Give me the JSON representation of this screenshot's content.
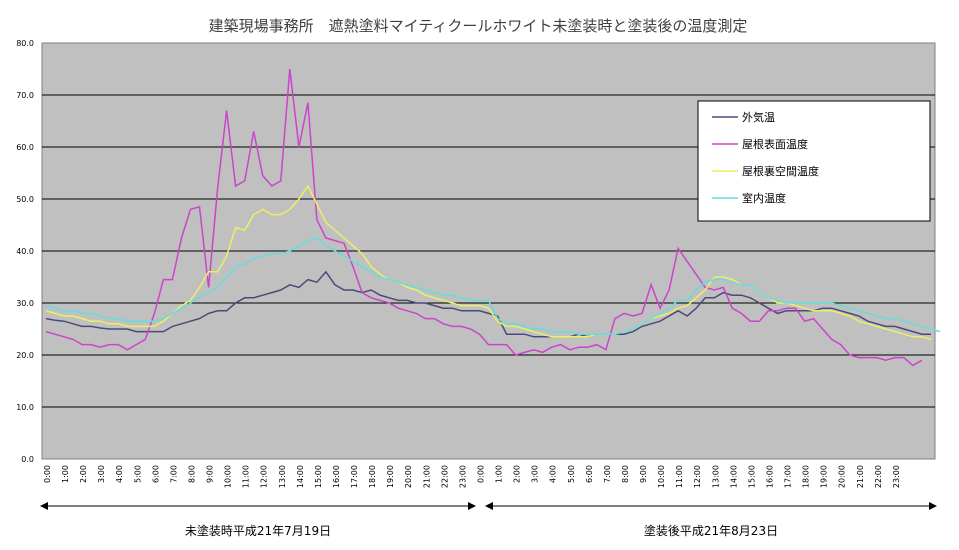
{
  "chart_data": {
    "type": "line",
    "title": "建築現場事務所　遮熱塗料マイティクールホワイト未塗装時と塗装後の温度測定",
    "y_ticks": [
      "0.0",
      "10.0",
      "20.0",
      "30.0",
      "40.0",
      "50.0",
      "60.0",
      "70.0",
      "80.0"
    ],
    "ylim": [
      0,
      80
    ],
    "grid": true,
    "legend_position": "top-right",
    "x_tick_labels": [
      "0:00",
      "1:00",
      "2:00",
      "3:00",
      "4:00",
      "5:00",
      "6:00",
      "7:00",
      "8:00",
      "9:00",
      "10:00",
      "11:00",
      "12:00",
      "13:00",
      "14:00",
      "15:00",
      "16:00",
      "17:00",
      "18:00",
      "19:00",
      "20:00",
      "21:00",
      "22:00",
      "23:00",
      "0:00",
      "1:00",
      "2:00",
      "3:00",
      "4:00",
      "5:00",
      "6:00",
      "7:00",
      "8:00",
      "9:00",
      "10:00",
      "11:00",
      "12:00",
      "13:00",
      "14:00",
      "15:00",
      "16:00",
      "17:00",
      "18:00",
      "19:00",
      "20:00",
      "21:00",
      "22:00",
      "23:00"
    ],
    "periods": [
      {
        "label": "未塗装時平成21年7月19日"
      },
      {
        "label": "塗装後平成21年8月23日"
      }
    ],
    "series": [
      {
        "name": "外気温",
        "color": "#4a4a7a",
        "values": [
          27,
          26.7,
          26.5,
          26,
          25.5,
          25.5,
          25.2,
          25,
          25,
          25,
          24.5,
          24.5,
          24.5,
          24.5,
          25.5,
          26,
          26.5,
          27,
          28,
          28.5,
          28.5,
          30,
          31,
          31,
          31.5,
          32,
          32.5,
          33.5,
          33,
          34.5,
          34,
          36,
          33.5,
          32.5,
          32.5,
          32,
          32.5,
          31.5,
          31,
          30.5,
          30.5,
          30,
          30,
          29.5,
          29,
          29,
          28.5,
          28.5,
          28.5,
          28,
          27.5,
          24,
          24,
          24,
          23.5,
          23.5,
          23.5,
          23.5,
          23.5,
          24,
          23.5,
          24,
          24,
          24,
          24,
          24.5,
          25.5,
          26,
          26.5,
          27.5,
          28.5,
          27.5,
          29,
          31,
          31,
          32,
          31.5,
          31.5,
          31,
          30,
          29,
          28,
          28.5,
          28.5,
          28.5,
          28.5,
          29,
          29,
          28.5,
          28,
          27.5,
          26.5,
          26,
          25.5,
          25.5,
          25,
          24.5,
          24,
          24
        ]
      },
      {
        "name": "屋根表面温度",
        "color": "#cc44cc",
        "values": [
          24.5,
          24,
          23.5,
          23,
          22,
          22,
          21.5,
          22,
          22,
          21,
          22,
          23,
          28,
          34.5,
          34.5,
          42.5,
          48,
          48.5,
          33,
          52,
          67,
          52.5,
          53.5,
          63,
          54.5,
          52.5,
          53.5,
          75,
          60,
          68.5,
          46,
          42.5,
          42,
          41.5,
          37,
          32,
          31,
          30.5,
          30,
          29,
          28.5,
          28,
          27,
          27,
          26,
          25.5,
          25.5,
          25,
          24,
          22,
          22,
          22,
          20,
          20.5,
          21,
          20.5,
          21.5,
          22,
          21,
          21.5,
          21.5,
          22,
          21,
          27,
          28,
          27.5,
          28,
          33.5,
          29,
          32.5,
          40.5,
          38,
          35.5,
          33,
          32.5,
          33,
          29,
          28,
          26.5,
          26.5,
          28.5,
          28.5,
          29,
          29,
          26.5,
          27,
          25,
          23,
          22,
          20,
          19.5,
          19.5,
          19.5,
          19,
          19.5,
          19.5,
          18,
          19
        ]
      },
      {
        "name": "屋根裏空間温度",
        "color": "#eeee66",
        "values": [
          28.5,
          28,
          27.5,
          27.5,
          27,
          26.5,
          26.5,
          26,
          26,
          25.5,
          25.5,
          25.5,
          25.5,
          26.5,
          28,
          29.5,
          30.5,
          33,
          36,
          36,
          39,
          44.5,
          44,
          47,
          48,
          47,
          47,
          48,
          50,
          52.5,
          49,
          45.5,
          44,
          42.5,
          41,
          39.5,
          37,
          35.5,
          34.5,
          34,
          33,
          32.5,
          31.5,
          31,
          30.5,
          30,
          29.5,
          29.5,
          29.5,
          29,
          26.5,
          25.5,
          25.5,
          25,
          24.5,
          24,
          23.5,
          23.5,
          23.5,
          23.5,
          23.5,
          24,
          24,
          24,
          24.5,
          25,
          26,
          27,
          27.5,
          28,
          29,
          29.5,
          31,
          32.5,
          35,
          35,
          34.5,
          33.5,
          33.5,
          32,
          31,
          30,
          30,
          29.5,
          29,
          28.5,
          28.5,
          28.5,
          28,
          27.5,
          26.5,
          26,
          25.5,
          25,
          24.5,
          24,
          23.5,
          23.5,
          23
        ]
      },
      {
        "name": "室内温度",
        "color": "#66dddd",
        "values": [
          29.5,
          29,
          28.5,
          28.5,
          28,
          28,
          27.5,
          27,
          27,
          26.5,
          26.5,
          26.5,
          26.5,
          27,
          28,
          29,
          30,
          31,
          32,
          33,
          35,
          37,
          37.5,
          38.5,
          39,
          39.5,
          39.5,
          40,
          41,
          42,
          42.5,
          41,
          40,
          39,
          38,
          37,
          36,
          35,
          34.5,
          34,
          33.5,
          33,
          32.5,
          32,
          31.5,
          31.5,
          31,
          30.5,
          30.5,
          30.5,
          27,
          26,
          26,
          25.5,
          25,
          25,
          24.5,
          24.5,
          24.5,
          24,
          24,
          24,
          24,
          24,
          24.5,
          25,
          26,
          27,
          28,
          29,
          30.5,
          30.5,
          32.5,
          34,
          34.5,
          34.5,
          34,
          33.5,
          33.5,
          32,
          31,
          30.5,
          30,
          30,
          30,
          30,
          30,
          30,
          29.5,
          29,
          28.5,
          28,
          27.5,
          27,
          27,
          26.5,
          26,
          25.5,
          25,
          24.5
        ]
      }
    ]
  }
}
